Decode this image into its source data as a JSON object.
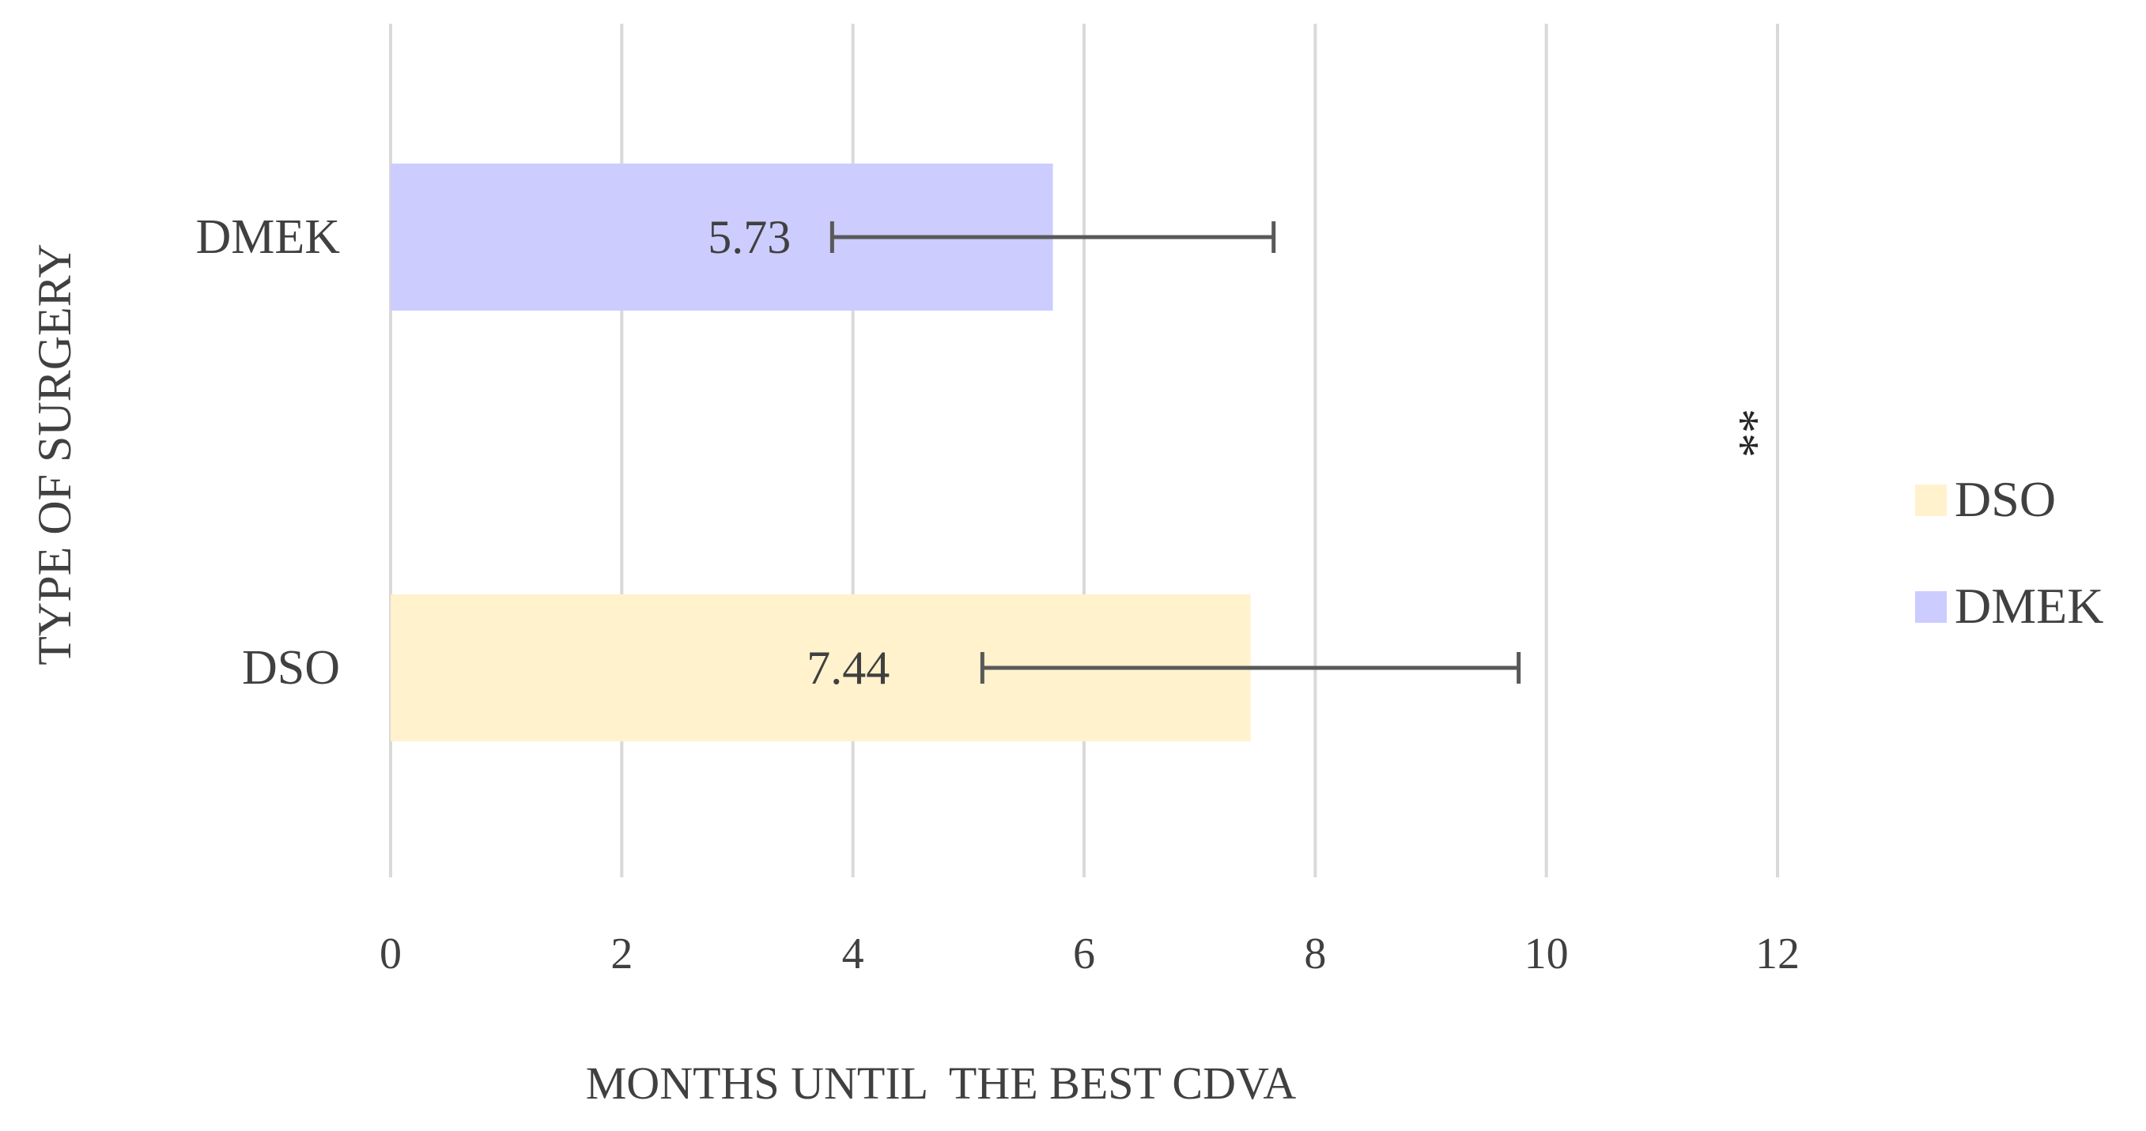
{
  "chart_data": {
    "type": "bar",
    "orientation": "horizontal",
    "categories": [
      "DMEK",
      "DSO"
    ],
    "values": [
      5.73,
      7.44
    ],
    "error_bar_ranges": [
      [
        3.82,
        7.64
      ],
      [
        5.12,
        9.76
      ]
    ],
    "data_labels": [
      "5.73",
      "7.44"
    ],
    "colors": [
      "#ccccff",
      "#fff2cc"
    ],
    "legend": [
      {
        "name": "DSO",
        "color": "#fff2cc"
      },
      {
        "name": "DMEK",
        "color": "#ccccff"
      }
    ],
    "legend_position": "right",
    "annotation": "**",
    "xlabel": "MONTHS UNTIL  THE BEST CDVA",
    "ylabel": "TYPE OF SURGERY",
    "xlim": [
      0,
      12
    ],
    "xticks": [
      "0",
      "2",
      "4",
      "6",
      "8",
      "10",
      "12"
    ],
    "grid": "vertical",
    "gridline_color": "#d9d9d9",
    "errorbar_color": "#595959"
  }
}
